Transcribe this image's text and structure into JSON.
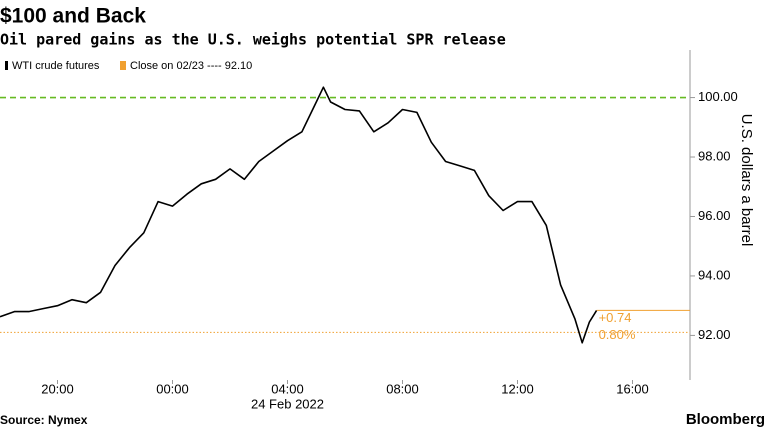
{
  "chart_data": {
    "type": "line",
    "title": "$100 and Back",
    "subtitle": "Oil pared gains as the U.S. weighs potential SPR release",
    "ylabel": "U.S. dollars a barrel",
    "date_label": "24 Feb 2022",
    "source": "Source: Nymex",
    "brand": "Bloomberg",
    "x": [
      "2022-02-23 18:00",
      "2022-02-23 18:30",
      "2022-02-23 19:00",
      "2022-02-23 19:30",
      "2022-02-23 20:00",
      "2022-02-23 20:30",
      "2022-02-23 21:00",
      "2022-02-23 21:30",
      "2022-02-23 22:00",
      "2022-02-23 22:30",
      "2022-02-23 23:00",
      "2022-02-23 23:30",
      "2022-02-24 00:00",
      "2022-02-24 00:30",
      "2022-02-24 01:00",
      "2022-02-24 01:30",
      "2022-02-24 02:00",
      "2022-02-24 02:30",
      "2022-02-24 03:00",
      "2022-02-24 03:30",
      "2022-02-24 04:00",
      "2022-02-24 04:30",
      "2022-02-24 05:00",
      "2022-02-24 05:15",
      "2022-02-24 05:30",
      "2022-02-24 06:00",
      "2022-02-24 06:30",
      "2022-02-24 07:00",
      "2022-02-24 07:30",
      "2022-02-24 08:00",
      "2022-02-24 08:30",
      "2022-02-24 09:00",
      "2022-02-24 09:30",
      "2022-02-24 10:00",
      "2022-02-24 10:30",
      "2022-02-24 11:00",
      "2022-02-24 11:30",
      "2022-02-24 12:00",
      "2022-02-24 12:30",
      "2022-02-24 13:00",
      "2022-02-24 13:30",
      "2022-02-24 14:00",
      "2022-02-24 14:15",
      "2022-02-24 14:30",
      "2022-02-24 14:45"
    ],
    "series": [
      {
        "name": "WTI crude futures",
        "color": "#000000",
        "values": [
          92.63,
          92.8,
          92.8,
          92.9,
          93.0,
          93.2,
          93.1,
          93.45,
          94.35,
          94.95,
          95.45,
          96.5,
          96.35,
          96.75,
          97.1,
          97.25,
          97.6,
          97.25,
          97.85,
          98.2,
          98.55,
          98.85,
          99.85,
          100.35,
          99.85,
          99.6,
          99.55,
          98.85,
          99.15,
          99.6,
          99.5,
          98.5,
          97.85,
          97.7,
          97.55,
          96.7,
          96.2,
          96.5,
          96.5,
          95.7,
          93.7,
          92.55,
          91.75,
          92.45,
          92.84
        ]
      }
    ],
    "reference_lines": [
      {
        "value": 100,
        "color": "#66bb22",
        "style": "dashed"
      },
      {
        "value": 92.1,
        "label": "Close on 02/23 ---- 92.10",
        "color": "#f0a030",
        "style": "dotted"
      }
    ],
    "annotations": [
      {
        "text": "+0.74",
        "color": "#f0a030"
      },
      {
        "text": "0.80%",
        "color": "#f0a030"
      }
    ],
    "xlim": [
      "2022-02-23 18:00",
      "2022-02-24 18:00"
    ],
    "xticks": [
      {
        "value": "2022-02-23 20:00",
        "label": "20:00"
      },
      {
        "value": "2022-02-24 00:00",
        "label": "00:00"
      },
      {
        "value": "2022-02-24 04:00",
        "label": "04:00"
      },
      {
        "value": "2022-02-24 08:00",
        "label": "08:00"
      },
      {
        "value": "2022-02-24 12:00",
        "label": "12:00"
      },
      {
        "value": "2022-02-24 16:00",
        "label": "16:00"
      }
    ],
    "ylim": [
      90.5,
      101.6
    ],
    "yticks": [
      {
        "value": 92,
        "label": "92.00"
      },
      {
        "value": 94,
        "label": "94.00"
      },
      {
        "value": 96,
        "label": "96.00"
      },
      {
        "value": 98,
        "label": "98.00"
      },
      {
        "value": 100,
        "label": "100.00"
      }
    ]
  }
}
